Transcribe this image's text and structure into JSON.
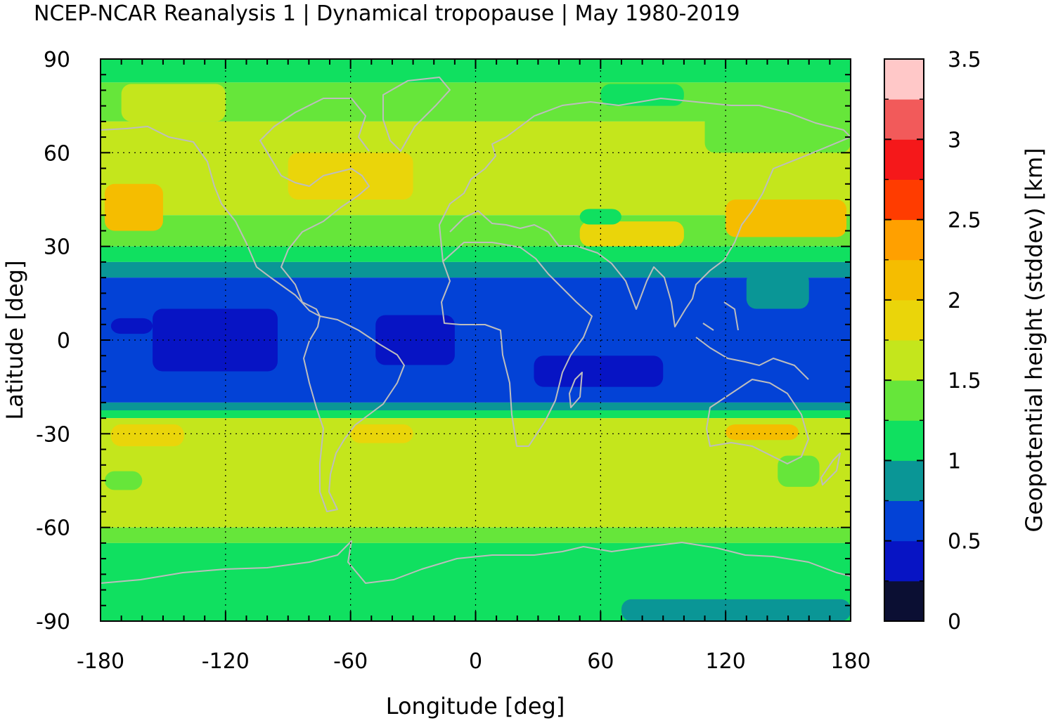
{
  "title": "NCEP-NCAR Reanalysis 1 | Dynamical tropopause | May 1980-2019",
  "map": {
    "projection": "equirectangular",
    "lon_range": [
      -180,
      180
    ],
    "lat_range": [
      -90,
      90
    ],
    "x_axis": {
      "label": "Longitude [deg]",
      "ticks": [
        -180,
        -120,
        -60,
        0,
        60,
        120,
        180
      ]
    },
    "y_axis": {
      "label": "Latitude [deg]",
      "ticks": [
        90,
        60,
        30,
        0,
        -30,
        -60,
        -90
      ]
    },
    "grid": "dotted",
    "coastline_color": "#bdbdbd"
  },
  "colorbar": {
    "label": "Geopotential height (stddev) [km]",
    "range": [
      0,
      3.5
    ],
    "tick_values": [
      0,
      0.5,
      1,
      1.5,
      2,
      2.5,
      3,
      3.5
    ],
    "tick_labels": [
      "0",
      "0.5",
      "1",
      "1.5",
      "2",
      "2.5",
      "3",
      "3.5"
    ],
    "colors": [
      "#0b0f33",
      "#0714c4",
      "#0342d6",
      "#0a9696",
      "#10e060",
      "#66e63a",
      "#c4e61c",
      "#ead50a",
      "#f5bd00",
      "#ffa000",
      "#ff3c00",
      "#f5181a",
      "#f25a5a",
      "#ffc8c8"
    ]
  },
  "bands": [
    {
      "lat": [
        82.5,
        90
      ],
      "level": 1.0
    },
    {
      "lat": [
        70,
        82.5
      ],
      "level": 1.25
    },
    {
      "lat": [
        40,
        70
      ],
      "level": 1.5
    },
    {
      "lat": [
        30,
        40
      ],
      "level": 1.25
    },
    {
      "lat": [
        25,
        30
      ],
      "level": 1.0
    },
    {
      "lat": [
        20,
        25
      ],
      "level": 0.75
    },
    {
      "lat": [
        -20,
        20
      ],
      "level": 0.5
    },
    {
      "lat": [
        -22.5,
        -20
      ],
      "level": 0.75
    },
    {
      "lat": [
        -25,
        -22.5
      ],
      "level": 1.0
    },
    {
      "lat": [
        -60,
        -25
      ],
      "level": 1.5
    },
    {
      "lat": [
        -65,
        -60
      ],
      "level": 1.25
    },
    {
      "lat": [
        -90,
        -65
      ],
      "level": 1.0
    }
  ],
  "patches": [
    {
      "lon": [
        -155,
        -95
      ],
      "lat": [
        -10,
        10
      ],
      "level": 0.25
    },
    {
      "lon": [
        -175,
        -155
      ],
      "lat": [
        2,
        7
      ],
      "level": 0.25
    },
    {
      "lon": [
        -48,
        -10
      ],
      "lat": [
        -8,
        8
      ],
      "level": 0.25
    },
    {
      "lon": [
        28,
        90
      ],
      "lat": [
        -15,
        -5
      ],
      "level": 0.25
    },
    {
      "lon": [
        -178,
        -150
      ],
      "lat": [
        35,
        50
      ],
      "level": 2.0
    },
    {
      "lon": [
        -90,
        -30
      ],
      "lat": [
        45,
        60
      ],
      "level": 1.75
    },
    {
      "lon": [
        120,
        178
      ],
      "lat": [
        33,
        45
      ],
      "level": 2.0
    },
    {
      "lon": [
        50,
        100
      ],
      "lat": [
        30,
        38
      ],
      "level": 1.75
    },
    {
      "lon": [
        120,
        155
      ],
      "lat": [
        -32,
        -27
      ],
      "level": 2.0
    },
    {
      "lon": [
        -60,
        -30
      ],
      "lat": [
        -33,
        -27
      ],
      "level": 1.75
    },
    {
      "lon": [
        -175,
        -140
      ],
      "lat": [
        -34,
        -27
      ],
      "level": 1.75
    },
    {
      "lon": [
        130,
        160
      ],
      "lat": [
        10,
        22
      ],
      "level": 0.75
    },
    {
      "lon": [
        50,
        70
      ],
      "lat": [
        37,
        42
      ],
      "level": 1.0
    },
    {
      "lon": [
        70,
        180
      ],
      "lat": [
        -90,
        -83
      ],
      "level": 0.75
    },
    {
      "lon": [
        -178,
        -160
      ],
      "lat": [
        -48,
        -42
      ],
      "level": 1.25
    },
    {
      "lon": [
        145,
        165
      ],
      "lat": [
        -47,
        -37
      ],
      "level": 1.25
    },
    {
      "lon": [
        -170,
        -120
      ],
      "lat": [
        70,
        82
      ],
      "level": 1.5
    },
    {
      "lon": [
        110,
        180
      ],
      "lat": [
        60,
        80
      ],
      "level": 1.25
    },
    {
      "lon": [
        60,
        100
      ],
      "lat": [
        75,
        82
      ],
      "level": 1.0
    }
  ]
}
